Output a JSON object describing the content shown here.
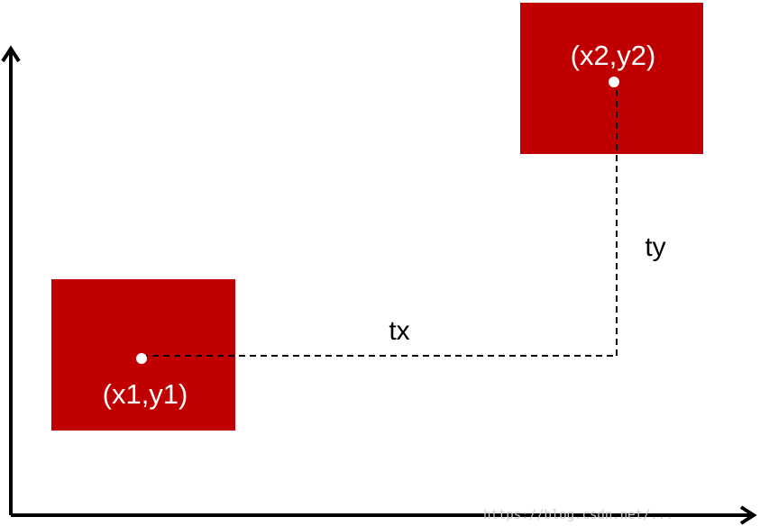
{
  "diagram": {
    "box1": {
      "label": "(x1,y1)",
      "fill": "#c00000"
    },
    "box2": {
      "label": "(x2,y2)",
      "fill": "#c00000"
    },
    "offsets": {
      "tx": "tx",
      "ty": "ty"
    },
    "watermark": "https://blog.csdn.net/..."
  },
  "colors": {
    "box": "#c00000",
    "axis": "#000000",
    "point": "#ffffff"
  }
}
